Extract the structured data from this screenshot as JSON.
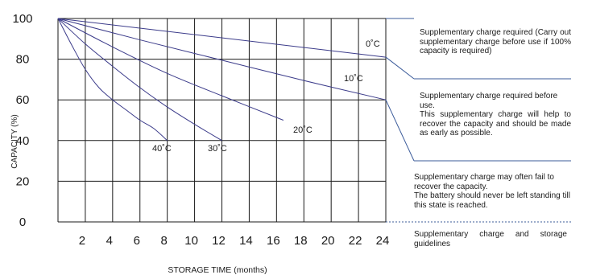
{
  "chart_data": {
    "type": "line",
    "xlabel": "STORAGE TIME (months)",
    "ylabel": "CAPACITY (%)",
    "xlim": [
      0,
      24
    ],
    "ylim": [
      0,
      100
    ],
    "x_ticks": [
      "2",
      "4",
      "6",
      "8",
      "10",
      "12",
      "14",
      "16",
      "18",
      "20",
      "22",
      "24"
    ],
    "y_ticks": [
      "100",
      "80",
      "60",
      "40",
      "20",
      "0"
    ],
    "grid": true,
    "series": [
      {
        "name": "0˚C",
        "color": "#3b3b8a",
        "x": [
          0,
          24
        ],
        "y": [
          100,
          81
        ]
      },
      {
        "name": "10˚C",
        "color": "#3b3b8a",
        "x": [
          0,
          6,
          12,
          18,
          24
        ],
        "y": [
          100,
          89.5,
          79.5,
          69.5,
          60
        ]
      },
      {
        "name": "20˚C",
        "color": "#3b3b8a",
        "x": [
          0,
          4,
          8,
          12,
          16.5
        ],
        "y": [
          100,
          86,
          73,
          62,
          50
        ]
      },
      {
        "name": "30˚C",
        "color": "#3b3b8a",
        "x": [
          0,
          2,
          4,
          6,
          8,
          10,
          12
        ],
        "y": [
          100,
          87.5,
          76.5,
          66,
          56.5,
          48,
          40
        ]
      },
      {
        "name": "40˚C",
        "color": "#3b3b8a",
        "x": [
          0,
          1,
          2,
          3,
          4,
          5,
          6,
          7,
          8
        ],
        "y": [
          100,
          87,
          75,
          66,
          60,
          55,
          50,
          46,
          40
        ]
      }
    ]
  },
  "notes": {
    "n1": "Supplementary charge required (Carry out supplementary charge before use if 100% capacity is required)",
    "n2_l1": "Supplementary charge required before use.",
    "n2_l2": "This supplementary charge will help to recover the capacity and should be made as early as possible.",
    "n3_l1": "Supplementary charge may often fail to recover the capacity.",
    "n3_l2": "The battery should never be left standing till this state is reached.",
    "n4": "Supplementary charge and storage guidelines"
  }
}
